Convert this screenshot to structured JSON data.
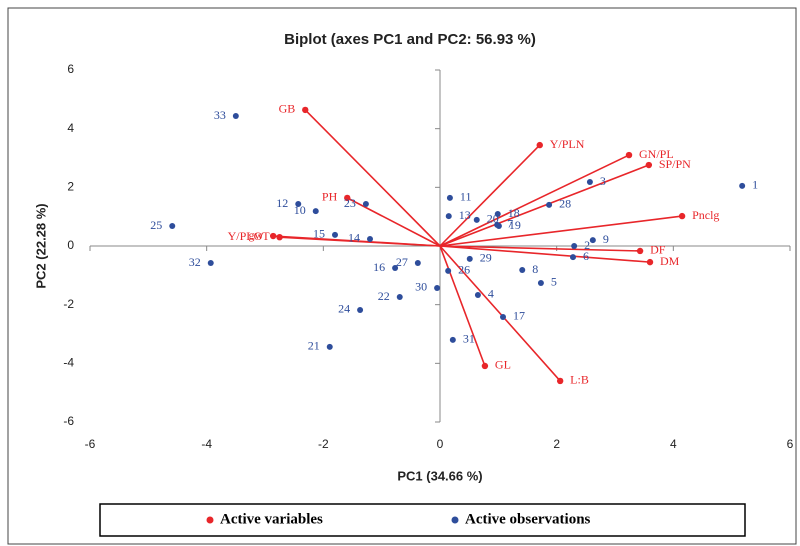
{
  "chart_data": {
    "type": "scatter",
    "title": "Biplot (axes PC1 and PC2: 56.93 %)",
    "x_label": "PC1 (34.66 %)",
    "y_label": "PC2 (22.28 %)",
    "xlim": [
      -6,
      6
    ],
    "ylim": [
      -6,
      6
    ],
    "xticks": [
      -6,
      -4,
      -2,
      0,
      2,
      4,
      6
    ],
    "yticks": [
      -6,
      -4,
      -2,
      0,
      2,
      4,
      6
    ],
    "series": [
      {
        "name": "Active variables",
        "color": "#e8262a",
        "labels": [
          "GB",
          "PH",
          "gw",
          "Y/PLOT",
          "Y/PLN",
          "GN/PL",
          "SP/PN",
          "Pnclg",
          "DF",
          "DM",
          "GL",
          "L:B"
        ],
        "x": [
          -2.31,
          -1.59,
          -2.86,
          -2.75,
          1.71,
          3.24,
          3.58,
          4.15,
          3.43,
          3.6,
          0.77,
          2.06
        ],
        "y": [
          4.64,
          1.64,
          0.34,
          0.3,
          3.44,
          3.1,
          2.76,
          1.02,
          -0.17,
          -0.55,
          -4.09,
          -4.6
        ]
      },
      {
        "name": "Active observations",
        "color": "#2e4d9b",
        "labels": [
          "1",
          "2",
          "3",
          "4",
          "5",
          "6",
          "7",
          "8",
          "9",
          "10",
          "11",
          "12",
          "13",
          "14",
          "15",
          "16",
          "17",
          "18",
          "19",
          "20",
          "21",
          "22",
          "23",
          "24",
          "25",
          "26",
          "27",
          "28",
          "29",
          "30",
          "31",
          "32",
          "33"
        ],
        "x": [
          5.18,
          2.3,
          2.57,
          0.65,
          1.73,
          2.28,
          0.98,
          1.41,
          2.62,
          -2.13,
          0.17,
          -2.43,
          0.15,
          -1.2,
          -1.8,
          -0.77,
          1.08,
          0.99,
          1.01,
          0.63,
          -1.89,
          -0.69,
          -1.27,
          -1.37,
          -4.59,
          0.14,
          -0.38,
          1.87,
          0.51,
          -0.05,
          0.22,
          -3.93,
          -3.5
        ],
        "y": [
          2.05,
          0.0,
          2.18,
          -1.67,
          -1.26,
          -0.38,
          0.72,
          -0.82,
          0.2,
          1.19,
          1.64,
          1.43,
          1.02,
          0.24,
          0.38,
          -0.75,
          -2.42,
          1.09,
          0.68,
          0.89,
          -3.44,
          -1.74,
          1.43,
          -2.18,
          0.68,
          -0.85,
          -0.58,
          1.4,
          -0.44,
          -1.43,
          -3.2,
          -0.58,
          4.43
        ]
      }
    ]
  }
}
